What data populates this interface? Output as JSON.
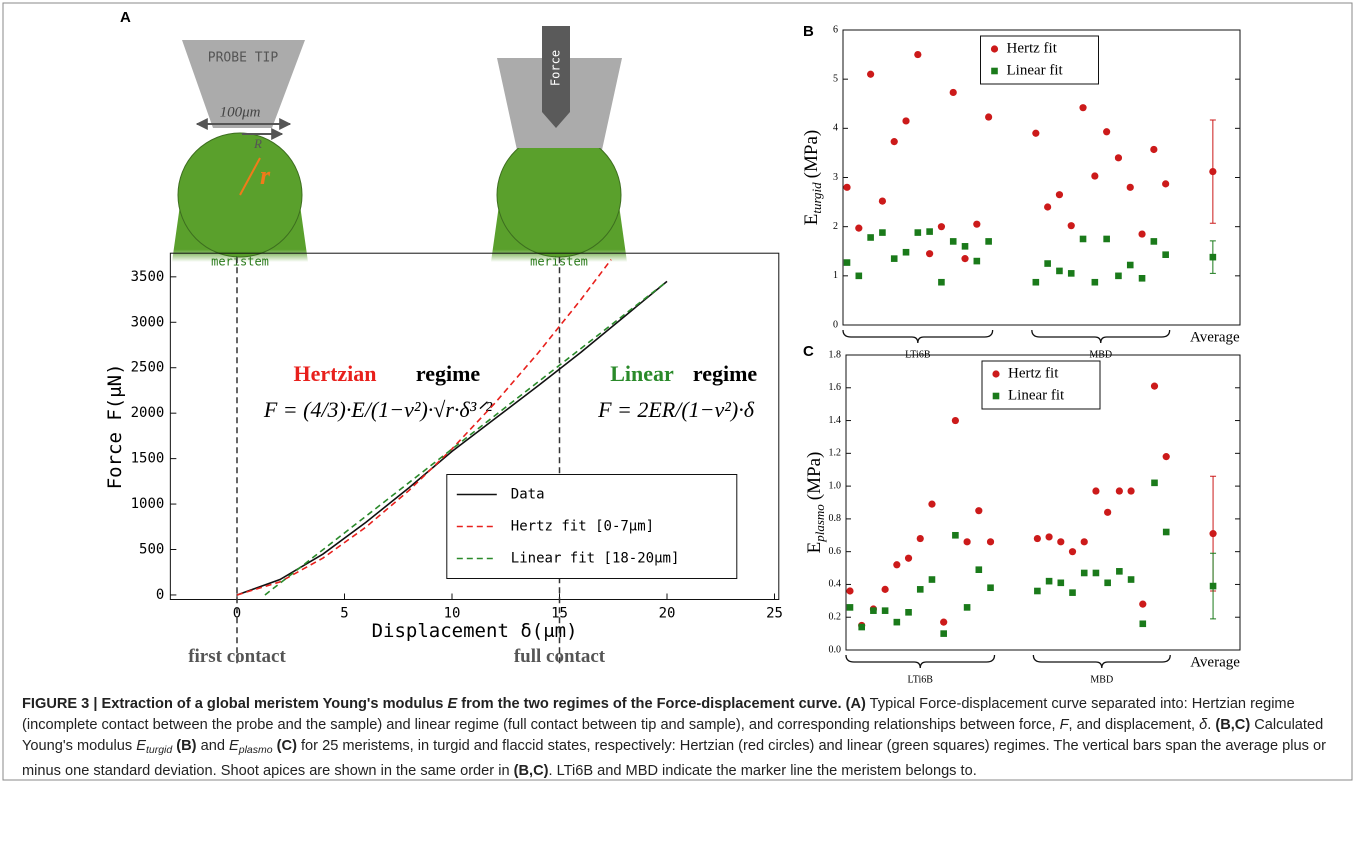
{
  "panel_labels": [
    "A",
    "B",
    "C"
  ],
  "illustration": {
    "probe": "PROBE TIP",
    "width": "100μm",
    "R": "R",
    "r": "r",
    "meristem": "meristem",
    "force": "Force"
  },
  "chart_data": [
    {
      "type": "line",
      "xlabel": "Displacement δ(μm)",
      "ylabel": "Force  F(μN)",
      "xlim": [
        -3.1,
        25.2
      ],
      "ylim": [
        -50,
        3760
      ],
      "xticks": [
        0,
        5,
        10,
        15,
        20,
        25
      ],
      "yticks": [
        0,
        500,
        1000,
        1500,
        2000,
        2500,
        3000,
        3500
      ],
      "vlines": [
        0,
        15
      ],
      "vline_labels": [
        "first contact",
        "full contact"
      ],
      "annotations": {
        "hertz_title": "Hertzian",
        "regime": "regime",
        "hertz_formula": "F = (4/3)·E/(1−ν²)·√r·δ³ᐟ²",
        "linear_title": "Linear",
        "linear_formula": "F = 2ER/(1−ν²)·δ"
      },
      "legend": "lower right",
      "series": [
        {
          "name": "Data",
          "color": "#111111",
          "style": "solid",
          "x": [
            0,
            2,
            4,
            6,
            8,
            10,
            12,
            14,
            16,
            18,
            20
          ],
          "values": [
            0,
            170,
            450,
            800,
            1180,
            1580,
            1940,
            2300,
            2670,
            3060,
            3450
          ]
        },
        {
          "name": "Hertz fit [0-7μm]",
          "color": "#e8201c",
          "style": "dashed",
          "x": [
            0,
            2,
            4,
            6,
            8,
            10,
            12,
            14,
            16,
            17.4
          ],
          "values": [
            0,
            144,
            406,
            747,
            1150,
            1607,
            2112,
            2661,
            3251,
            3690
          ]
        },
        {
          "name": "Linear fit [18-20μm]",
          "color": "#2a8a2a",
          "style": "dashed",
          "x": [
            1.3,
            20
          ],
          "values": [
            0,
            3450
          ]
        }
      ]
    },
    {
      "type": "scatter",
      "ylabel": "E",
      "ylabel_sub": "turgid",
      "ylabel_unit": "(MPa)",
      "xlim": [
        0.66,
        34.3
      ],
      "ylim": [
        0,
        6
      ],
      "yticks": [
        0,
        1,
        2,
        3,
        4,
        5,
        6
      ],
      "legend": "upper center",
      "groups": [
        {
          "label": "LTi6B",
          "range": [
            1,
            13
          ]
        },
        {
          "label": "MBD",
          "range": [
            17,
            28
          ]
        }
      ],
      "average": {
        "label": "Average",
        "x": 32,
        "values": [
          3.12,
          1.38
        ],
        "errors": [
          1.05,
          0.33
        ]
      },
      "x": [
        1,
        2,
        3,
        4,
        5,
        6,
        7,
        8,
        9,
        10,
        11,
        12,
        13,
        17,
        18,
        19,
        20,
        21,
        22,
        23,
        24,
        25,
        26,
        27,
        28
      ],
      "series": [
        {
          "name": "Hertz fit",
          "color": "#cc1a1a",
          "marker": "circle",
          "values": [
            2.8,
            1.97,
            5.1,
            2.52,
            3.73,
            4.15,
            5.5,
            1.45,
            2.0,
            4.73,
            1.35,
            2.05,
            4.23,
            3.9,
            2.4,
            2.65,
            2.02,
            4.42,
            3.03,
            3.93,
            3.4,
            2.8,
            1.85,
            3.57,
            2.87
          ]
        },
        {
          "name": "Linear fit",
          "color": "#1a7a1a",
          "marker": "square",
          "values": [
            1.27,
            1.0,
            1.78,
            1.88,
            1.35,
            1.48,
            1.88,
            1.9,
            0.87,
            1.7,
            1.6,
            1.3,
            1.7,
            0.87,
            1.25,
            1.1,
            1.05,
            1.75,
            0.87,
            1.75,
            1.0,
            1.22,
            0.95,
            1.7,
            1.43
          ]
        }
      ]
    },
    {
      "type": "scatter",
      "ylabel": "E",
      "ylabel_sub": "plasmo",
      "ylabel_unit": "(MPa)",
      "xlim": [
        0.66,
        34.3
      ],
      "ylim": [
        0,
        1.8
      ],
      "yticks": [
        {
          "value": 0,
          "label": "0.0"
        },
        0.2,
        0.4,
        0.6,
        0.8,
        {
          "value": 1,
          "label": "1.0"
        },
        1.2,
        1.4,
        1.6,
        1.8
      ],
      "legend": "upper center",
      "groups": [
        {
          "label": "LTi6B",
          "range": [
            1,
            13
          ]
        },
        {
          "label": "MBD",
          "range": [
            17,
            28
          ]
        }
      ],
      "average": {
        "label": "Average",
        "x": 32,
        "values": [
          0.71,
          0.39
        ],
        "errors": [
          0.35,
          0.2
        ]
      },
      "x": [
        1,
        2,
        3,
        4,
        5,
        6,
        7,
        8,
        9,
        10,
        11,
        12,
        13,
        17,
        18,
        19,
        20,
        21,
        22,
        23,
        24,
        25,
        26,
        27,
        28
      ],
      "series": [
        {
          "name": "Hertz fit",
          "color": "#cc1a1a",
          "marker": "circle",
          "values": [
            0.36,
            0.15,
            0.25,
            0.37,
            0.52,
            0.56,
            0.68,
            0.89,
            0.17,
            1.4,
            0.66,
            0.85,
            0.66,
            0.68,
            0.69,
            0.66,
            0.6,
            0.66,
            0.97,
            0.84,
            0.97,
            0.97,
            0.28,
            1.61,
            1.18
          ]
        },
        {
          "name": "Linear fit",
          "color": "#1a7a1a",
          "marker": "square",
          "values": [
            0.26,
            0.14,
            0.24,
            0.24,
            0.17,
            0.23,
            0.37,
            0.43,
            0.1,
            0.7,
            0.26,
            0.49,
            0.38,
            0.36,
            0.42,
            0.41,
            0.35,
            0.47,
            0.47,
            0.41,
            0.48,
            0.43,
            0.16,
            1.02,
            0.72
          ]
        }
      ]
    }
  ],
  "caption": [
    {
      "text": "FIGURE 3 | Extraction of a global meristem Young's modulus ",
      "bold": true
    },
    {
      "text": "E",
      "bold": true,
      "italic": true
    },
    {
      "text": " from the two regimes of the Force-displacement curve. ",
      "bold": true
    },
    {
      "text": "(A)",
      "bold": true
    },
    {
      "text": " Typical Force-displacement curve separated into: Hertzian regime (incomplete contact between the probe and the sample) and linear regime (full contact between tip and sample), and corresponding relationships between force, "
    },
    {
      "text": "F",
      "italic": true
    },
    {
      "text": ", and displacement, "
    },
    {
      "text": "δ",
      "italic": true
    },
    {
      "text": ". "
    },
    {
      "text": "(B,C)",
      "bold": true
    },
    {
      "text": " Calculated Young's modulus "
    },
    {
      "text": "E",
      "italic": true
    },
    {
      "text": "turgid",
      "italic": true,
      "sub": true
    },
    {
      "text": " "
    },
    {
      "text": "(B)",
      "bold": true
    },
    {
      "text": " and "
    },
    {
      "text": "E",
      "italic": true
    },
    {
      "text": "plasmo",
      "italic": true,
      "sub": true
    },
    {
      "text": " "
    },
    {
      "text": "(C)",
      "bold": true
    },
    {
      "text": " for 25 meristems, in turgid and flaccid states, respectively: Hertzian (red circles) and linear (green squares) regimes. The vertical bars span the average plus or minus one standard deviation. Shoot apices are shown in the same order in "
    },
    {
      "text": "(B,C)",
      "bold": true
    },
    {
      "text": ". LTi6B and MBD indicate the marker line the meristem belongs to."
    }
  ]
}
